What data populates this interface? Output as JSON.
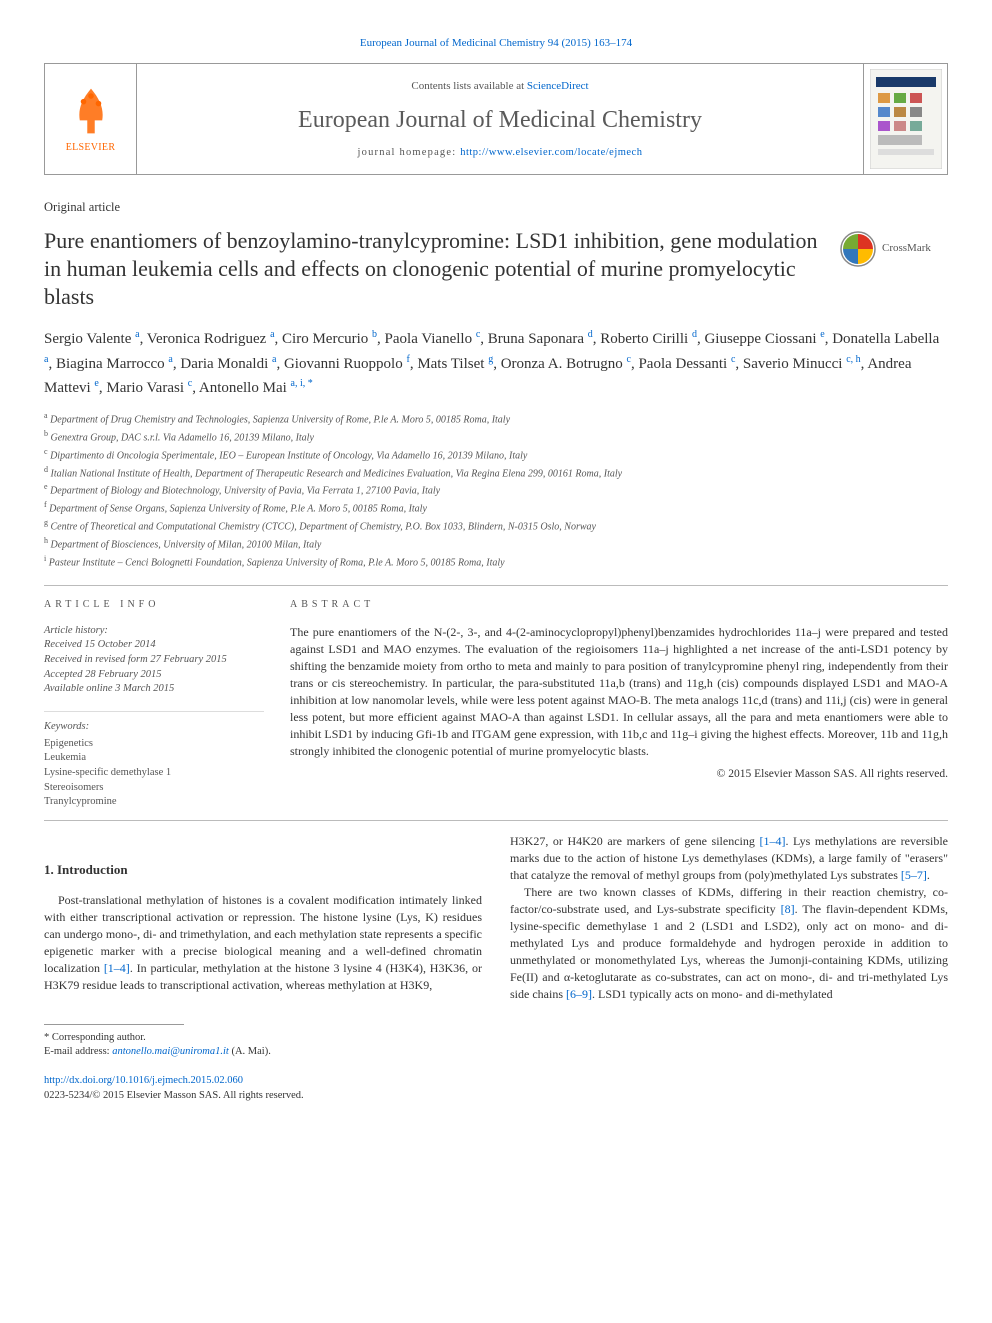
{
  "top_link": "European Journal of Medicinal Chemistry 94 (2015) 163–174",
  "header": {
    "contents_prefix": "Contents lists available at ",
    "contents_link": "ScienceDirect",
    "journal_name": "European Journal of Medicinal Chemistry",
    "homepage_prefix": "journal homepage: ",
    "homepage_url": "http://www.elsevier.com/locate/ejmech",
    "elsevier_brand": "ELSEVIER"
  },
  "article_type": "Original article",
  "title": "Pure enantiomers of benzoylamino-tranylcypromine: LSD1 inhibition, gene modulation in human leukemia cells and effects on clonogenic potential of murine promyelocytic blasts",
  "crossmark_label": "CrossMark",
  "authors_html": "Sergio Valente <sup>a</sup>, Veronica Rodriguez <sup>a</sup>, Ciro Mercurio <sup>b</sup>, Paola Vianello <sup>c</sup>, Bruna Saponara <sup>d</sup>, Roberto Cirilli <sup>d</sup>, Giuseppe Ciossani <sup>e</sup>, Donatella Labella <sup>a</sup>, Biagina Marrocco <sup>a</sup>, Daria Monaldi <sup>a</sup>, Giovanni Ruoppolo <sup>f</sup>, Mats Tilset <sup>g</sup>, Oronza A. Botrugno <sup>c</sup>, Paola Dessanti <sup>c</sup>, Saverio Minucci <sup>c, h</sup>, Andrea Mattevi <sup>e</sup>, Mario Varasi <sup>c</sup>, Antonello Mai <sup>a, i, *</sup>",
  "affiliations": [
    {
      "key": "a",
      "text": "Department of Drug Chemistry and Technologies, Sapienza University of Rome, P.le A. Moro 5, 00185 Roma, Italy"
    },
    {
      "key": "b",
      "text": "Genextra Group, DAC s.r.l. Via Adamello 16, 20139 Milano, Italy"
    },
    {
      "key": "c",
      "text": "Dipartimento di Oncologia Sperimentale, IEO – European Institute of Oncology, Via Adamello 16, 20139 Milano, Italy"
    },
    {
      "key": "d",
      "text": "Italian National Institute of Health, Department of Therapeutic Research and Medicines Evaluation, Via Regina Elena 299, 00161 Roma, Italy"
    },
    {
      "key": "e",
      "text": "Department of Biology and Biotechnology, University of Pavia, Via Ferrata 1, 27100 Pavia, Italy"
    },
    {
      "key": "f",
      "text": "Department of Sense Organs, Sapienza University of Rome, P.le A. Moro 5, 00185 Roma, Italy"
    },
    {
      "key": "g",
      "text": "Centre of Theoretical and Computational Chemistry (CTCC), Department of Chemistry, P.O. Box 1033, Blindern, N-0315 Oslo, Norway"
    },
    {
      "key": "h",
      "text": "Department of Biosciences, University of Milan, 20100 Milan, Italy"
    },
    {
      "key": "i",
      "text": "Pasteur Institute – Cenci Bolognetti Foundation, Sapienza University of Roma, P.le A. Moro 5, 00185 Roma, Italy"
    }
  ],
  "article_info_head": "ARTICLE INFO",
  "abstract_head": "ABSTRACT",
  "history": {
    "label": "Article history:",
    "received": "Received 15 October 2014",
    "revised": "Received in revised form 27 February 2015",
    "accepted": "Accepted 28 February 2015",
    "online": "Available online 3 March 2015"
  },
  "keywords_head": "Keywords:",
  "keywords": [
    "Epigenetics",
    "Leukemia",
    "Lysine-specific demethylase 1",
    "Stereoisomers",
    "Tranylcypromine"
  ],
  "abstract": "The pure enantiomers of the N-(2-, 3-, and 4-(2-aminocyclopropyl)phenyl)benzamides hydrochlorides 11a–j were prepared and tested against LSD1 and MAO enzymes. The evaluation of the regioisomers 11a–j highlighted a net increase of the anti-LSD1 potency by shifting the benzamide moiety from ortho to meta and mainly to para position of tranylcypromine phenyl ring, independently from their trans or cis stereochemistry. In particular, the para-substituted 11a,b (trans) and 11g,h (cis) compounds displayed LSD1 and MAO-A inhibition at low nanomolar levels, while were less potent against MAO-B. The meta analogs 11c,d (trans) and 11i,j (cis) were in general less potent, but more efficient against MAO-A than against LSD1. In cellular assays, all the para and meta enantiomers were able to inhibit LSD1 by inducing Gfi-1b and ITGAM gene expression, with 11b,c and 11g–i giving the highest effects. Moreover, 11b and 11g,h strongly inhibited the clonogenic potential of murine promyelocytic blasts.",
  "copyright": "© 2015 Elsevier Masson SAS. All rights reserved.",
  "intro_head": "1. Introduction",
  "intro_col1": "Post-translational methylation of histones is a covalent modification intimately linked with either transcriptional activation or repression. The histone lysine (Lys, K) residues can undergo mono-, di- and trimethylation, and each methylation state represents a specific epigenetic marker with a precise biological meaning and a well-defined chromatin localization [1–4]. In particular, methylation at the histone 3 lysine 4 (H3K4), H3K36, or H3K79 residue leads to transcriptional activation, whereas methylation at H3K9,",
  "intro_col2a": "H3K27, or H4K20 are markers of gene silencing [1–4]. Lys methylations are reversible marks due to the action of histone Lys demethylases (KDMs), a large family of \"erasers\" that catalyze the removal of methyl groups from (poly)methylated Lys substrates [5–7].",
  "intro_col2b": "There are two known classes of KDMs, differing in their reaction chemistry, co-factor/co-substrate used, and Lys-substrate specificity [8]. The flavin-dependent KDMs, lysine-specific demethylase 1 and 2 (LSD1 and LSD2), only act on mono- and di-methylated Lys and produce formaldehyde and hydrogen peroxide in addition to unmethylated or monomethylated Lys, whereas the Jumonji-containing KDMs, utilizing Fe(II) and α-ketoglutarate as co-substrates, can act on mono-, di- and tri-methylated Lys side chains [6–9]. LSD1 typically acts on mono- and di-methylated",
  "corresponding": {
    "label": "* Corresponding author.",
    "email_label": "E-mail address: ",
    "email": "antonello.mai@uniroma1.it",
    "person": " (A. Mai)."
  },
  "doi": {
    "url": "http://dx.doi.org/10.1016/j.ejmech.2015.02.060",
    "issn_line": "0223-5234/© 2015 Elsevier Masson SAS. All rights reserved."
  },
  "colors": {
    "link": "#0066cc",
    "elsevier_orange": "#ff6600",
    "text": "#333333",
    "muted": "#555555",
    "rule": "#999999"
  }
}
